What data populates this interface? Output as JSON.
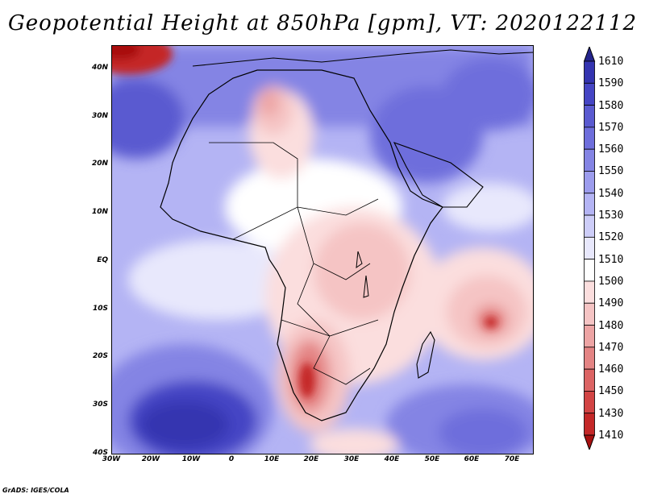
{
  "title": "Geopotential Height at 850hPa [gpm], VT: 2020122112",
  "credit": "GrADS: IGES/COLA",
  "lat_labels": [
    "40N",
    "30N",
    "20N",
    "10N",
    "EQ",
    "10S",
    "20S",
    "30S",
    "40S"
  ],
  "lon_labels": [
    "30W",
    "20W",
    "10W",
    "0",
    "10E",
    "20E",
    "30E",
    "40E",
    "50E",
    "60E",
    "70E"
  ],
  "colorbar": {
    "labels": [
      "1610",
      "1590",
      "1580",
      "1570",
      "1560",
      "1550",
      "1540",
      "1530",
      "1520",
      "1510",
      "1500",
      "1490",
      "1480",
      "1470",
      "1460",
      "1450",
      "1430",
      "1410"
    ],
    "colors": [
      "#24248c",
      "#3434b0",
      "#4545c4",
      "#5a5ad0",
      "#6e6edc",
      "#8484e4",
      "#9c9ced",
      "#b4b4f4",
      "#cdcdf8",
      "#e8e8fc",
      "#ffffff",
      "#fbdede",
      "#f5c4c4",
      "#eda4a4",
      "#e48484",
      "#dc6464",
      "#d24444",
      "#c42828",
      "#a81010"
    ]
  },
  "field": {
    "variable": "Geopotential Height",
    "level": "850hPa",
    "units": "gpm",
    "valid_time": "2020122112",
    "lat_range": [
      "40S",
      "45N"
    ],
    "lon_range": [
      "30W",
      "75E"
    ]
  }
}
